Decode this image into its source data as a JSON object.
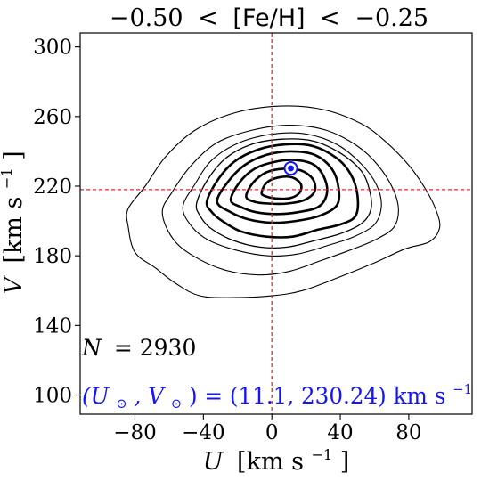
{
  "chart_data": {
    "type": "contour",
    "title": {
      "lower": "−0.50",
      "lt1": "<",
      "quantity": "[Fe/H]",
      "lt2": "<",
      "upper": "−0.25"
    },
    "xlabel": {
      "symbol": "U",
      "unit": "[km s",
      "exp": "−1",
      "close": "]"
    },
    "ylabel": {
      "symbol": "V",
      "unit": "[km s",
      "exp": "−1",
      "close": "]"
    },
    "xlim": [
      -112,
      117
    ],
    "ylim": [
      89,
      308
    ],
    "x_ticks": [
      -80,
      -40,
      0,
      40,
      80
    ],
    "x_tick_labels": [
      "−80",
      "−40",
      "0",
      "40",
      "80"
    ],
    "y_ticks": [
      100,
      140,
      180,
      220,
      260,
      300
    ],
    "y_tick_labels": [
      "100",
      "140",
      "180",
      "220",
      "260",
      "300"
    ],
    "reference_lines": {
      "vertical_x": 0,
      "horizontal_y": 218,
      "color": "#e8262a"
    },
    "sun": {
      "x": 11.1,
      "y": 230.24,
      "color": "#1414ff"
    },
    "annotations": {
      "n_label": {
        "prefix": "N",
        "value": "= 2930"
      },
      "sun_label": {
        "lhs": "(U",
        "sub1": "⊙",
        "mid": ", V",
        "sub2": "⊙",
        "rhs": ") = (11.1, 230.24) km s",
        "exp": "−1",
        "color": "#1414ff"
      }
    },
    "contours": [
      {
        "level": 1,
        "width": 1.1,
        "points": [
          [
            -84,
            197
          ],
          [
            -84,
            207
          ],
          [
            -74,
            220
          ],
          [
            -62,
            237
          ],
          [
            -45,
            252
          ],
          [
            -22,
            262
          ],
          [
            5,
            266
          ],
          [
            30,
            264
          ],
          [
            52,
            256
          ],
          [
            66,
            246
          ],
          [
            80,
            232
          ],
          [
            90,
            218
          ],
          [
            96,
            206
          ],
          [
            98,
            196
          ],
          [
            92,
            188
          ],
          [
            78,
            184
          ],
          [
            60,
            176
          ],
          [
            40,
            168
          ],
          [
            18,
            160
          ],
          [
            0,
            157
          ],
          [
            -22,
            156
          ],
          [
            -42,
            157
          ],
          [
            -56,
            164
          ],
          [
            -68,
            173
          ],
          [
            -80,
            182
          ]
        ]
      },
      {
        "level": 2,
        "width": 1.1,
        "points": [
          [
            -64,
            205
          ],
          [
            -58,
            217
          ],
          [
            -47,
            232
          ],
          [
            -32,
            245
          ],
          [
            -12,
            252
          ],
          [
            10,
            255
          ],
          [
            32,
            252
          ],
          [
            50,
            243
          ],
          [
            62,
            232
          ],
          [
            71,
            218
          ],
          [
            74,
            206
          ],
          [
            71,
            196
          ],
          [
            60,
            189
          ],
          [
            45,
            183
          ],
          [
            28,
            177
          ],
          [
            10,
            171
          ],
          [
            -8,
            169
          ],
          [
            -28,
            172
          ],
          [
            -46,
            180
          ],
          [
            -58,
            190
          ]
        ]
      },
      {
        "level": 3,
        "width": 1.1,
        "points": [
          [
            -52,
            208
          ],
          [
            -45,
            221
          ],
          [
            -35,
            235
          ],
          [
            -19,
            245
          ],
          [
            1,
            250
          ],
          [
            20,
            250
          ],
          [
            38,
            244
          ],
          [
            52,
            233
          ],
          [
            61,
            221
          ],
          [
            64,
            209
          ],
          [
            60,
            198
          ],
          [
            48,
            191
          ],
          [
            33,
            186
          ],
          [
            15,
            181
          ],
          [
            -2,
            180
          ],
          [
            -20,
            183
          ],
          [
            -37,
            189
          ],
          [
            -47,
            197
          ]
        ]
      },
      {
        "level": 4,
        "width": 1.3,
        "points": [
          [
            -44,
            210
          ],
          [
            -38,
            223
          ],
          [
            -27,
            236
          ],
          [
            -12,
            244
          ],
          [
            6,
            247
          ],
          [
            24,
            246
          ],
          [
            40,
            239
          ],
          [
            52,
            229
          ],
          [
            57,
            218
          ],
          [
            58,
            207
          ],
          [
            53,
            199
          ],
          [
            41,
            193
          ],
          [
            26,
            189
          ],
          [
            9,
            185
          ],
          [
            -7,
            185
          ],
          [
            -23,
            189
          ],
          [
            -36,
            196
          ],
          [
            -42,
            203
          ]
        ]
      },
      {
        "level": 5,
        "width": 2.6,
        "points": [
          [
            -38,
            211
          ],
          [
            -32,
            223
          ],
          [
            -22,
            234
          ],
          [
            -8,
            241
          ],
          [
            8,
            244
          ],
          [
            24,
            243
          ],
          [
            38,
            236
          ],
          [
            46,
            227
          ],
          [
            50,
            215
          ],
          [
            49,
            203
          ],
          [
            40,
            198
          ],
          [
            27,
            195
          ],
          [
            12,
            191
          ],
          [
            -3,
            191
          ],
          [
            -18,
            194
          ],
          [
            -29,
            200
          ],
          [
            -35,
            205
          ]
        ]
      },
      {
        "level": 6,
        "width": 2.6,
        "points": [
          [
            -32,
            211
          ],
          [
            -26,
            222
          ],
          [
            -16,
            232
          ],
          [
            -3,
            238
          ],
          [
            11,
            240
          ],
          [
            25,
            238
          ],
          [
            35,
            230
          ],
          [
            39,
            219
          ],
          [
            38,
            209
          ],
          [
            28,
            203
          ],
          [
            14,
            200
          ],
          [
            0,
            199
          ],
          [
            -14,
            201
          ],
          [
            -24,
            205
          ]
        ]
      },
      {
        "level": 7,
        "width": 2.6,
        "points": [
          [
            -24,
            212
          ],
          [
            -19,
            222
          ],
          [
            -10,
            230
          ],
          [
            2,
            234
          ],
          [
            14,
            235
          ],
          [
            25,
            232
          ],
          [
            31,
            224
          ],
          [
            32,
            215
          ],
          [
            27,
            208
          ],
          [
            15,
            205
          ],
          [
            3,
            204
          ],
          [
            -9,
            205
          ],
          [
            -18,
            208
          ]
        ]
      },
      {
        "level": 8,
        "width": 2.6,
        "points": [
          [
            -15,
            214
          ],
          [
            -11,
            222
          ],
          [
            -3,
            228
          ],
          [
            7,
            230
          ],
          [
            17,
            229
          ],
          [
            24,
            224
          ],
          [
            25,
            217
          ],
          [
            19,
            212
          ],
          [
            9,
            210
          ],
          [
            -2,
            210
          ],
          [
            -10,
            211
          ]
        ]
      },
      {
        "level": 9,
        "width": 2.6,
        "points": [
          [
            -6,
            216
          ],
          [
            -3,
            222
          ],
          [
            4,
            225
          ],
          [
            12,
            225
          ],
          [
            17,
            221
          ],
          [
            16,
            216
          ],
          [
            10,
            213
          ],
          [
            2,
            213
          ],
          [
            -3,
            214
          ]
        ]
      }
    ]
  }
}
